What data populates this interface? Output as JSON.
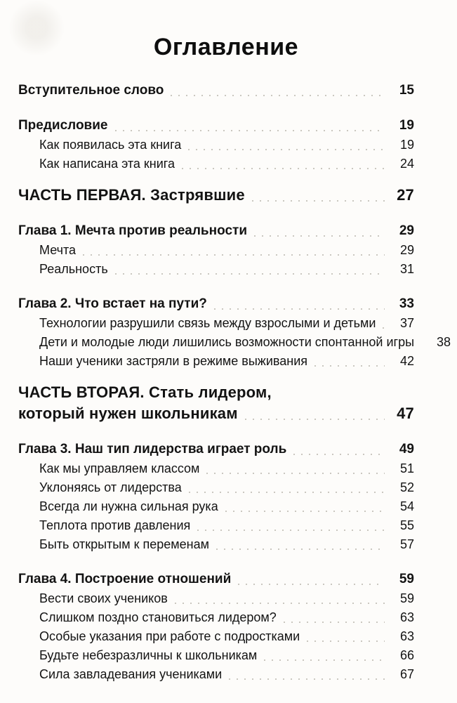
{
  "page": {
    "title": "Оглавление"
  },
  "toc": {
    "sections": [
      {
        "entries": [
          {
            "type": "chapter",
            "label": "Вступительное слово",
            "page": "15"
          }
        ]
      },
      {
        "entries": [
          {
            "type": "chapter",
            "label": "Предисловие",
            "page": "19"
          },
          {
            "type": "sub",
            "label": "Как появилась эта книга",
            "page": "19"
          },
          {
            "type": "sub",
            "label": "Как написана эта книга",
            "page": "24"
          }
        ]
      },
      {
        "entries": [
          {
            "type": "part",
            "lines": [
              "ЧАСТЬ ПЕРВАЯ. Застрявшие"
            ],
            "page": "27"
          }
        ]
      },
      {
        "entries": [
          {
            "type": "chapter",
            "label": "Глава 1. Мечта против реальности",
            "page": "29"
          },
          {
            "type": "sub",
            "label": "Мечта",
            "page": "29"
          },
          {
            "type": "sub",
            "label": "Реальность",
            "page": "31"
          }
        ]
      },
      {
        "entries": [
          {
            "type": "chapter",
            "label": "Глава 2. Что встает на пути?",
            "page": "33"
          },
          {
            "type": "sub",
            "label": "Технологии разрушили связь между взрослыми и детьми",
            "page": "37"
          },
          {
            "type": "sub",
            "label": "Дети и молодые люди лишились возможности спонтанной игры",
            "page": "38"
          },
          {
            "type": "sub",
            "label": "Наши ученики застряли в режиме выживания",
            "page": "42"
          }
        ]
      },
      {
        "entries": [
          {
            "type": "part",
            "lines": [
              "ЧАСТЬ ВТОРАЯ. Стать лидером,",
              "который нужен школьникам"
            ],
            "page": "47"
          }
        ]
      },
      {
        "entries": [
          {
            "type": "chapter",
            "label": "Глава 3. Наш тип лидерства играет роль",
            "page": "49"
          },
          {
            "type": "sub",
            "label": "Как мы управляем классом",
            "page": "51"
          },
          {
            "type": "sub",
            "label": "Уклоняясь от лидерства",
            "page": "52"
          },
          {
            "type": "sub",
            "label": "Всегда ли нужна сильная рука",
            "page": "54"
          },
          {
            "type": "sub",
            "label": "Теплота против давления",
            "page": "55"
          },
          {
            "type": "sub",
            "label": "Быть открытым к переменам",
            "page": "57"
          }
        ]
      },
      {
        "entries": [
          {
            "type": "chapter",
            "label": "Глава 4. Построение отношений",
            "page": "59"
          },
          {
            "type": "sub",
            "label": "Вести своих учеников",
            "page": "59"
          },
          {
            "type": "sub",
            "label": "Слишком поздно становиться лидером?",
            "page": "63"
          },
          {
            "type": "sub",
            "label": "Особые указания при работе с подростками",
            "page": "63"
          },
          {
            "type": "sub",
            "label": "Будьте небезразличны к школьникам",
            "page": "66"
          },
          {
            "type": "sub",
            "label": "Сила завладевания учениками",
            "page": "67"
          }
        ]
      }
    ]
  }
}
